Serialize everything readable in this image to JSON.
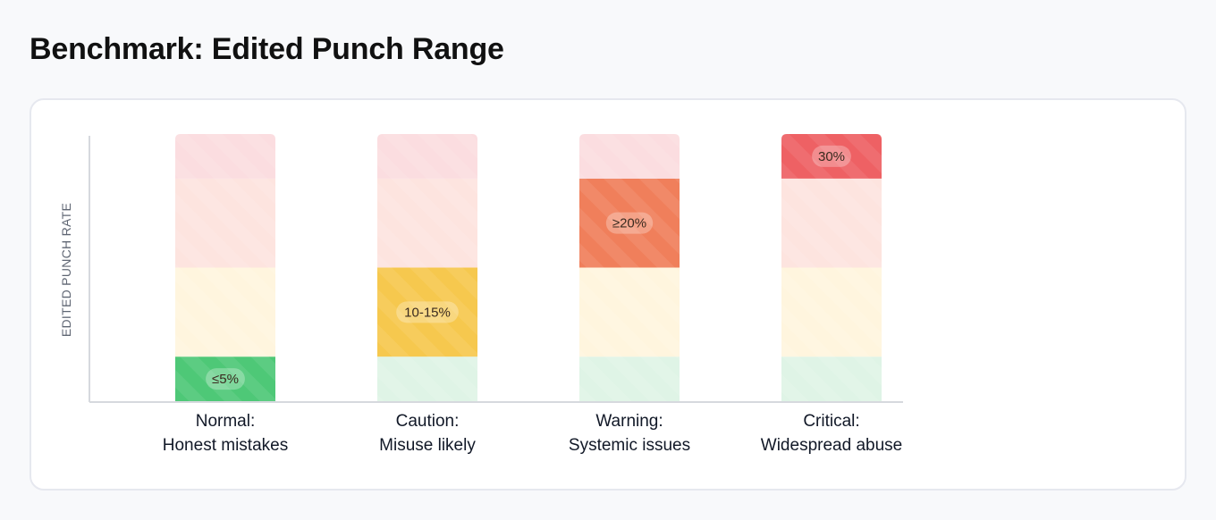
{
  "page": {
    "title": "Benchmark: Edited Punch Range"
  },
  "chart_data": {
    "type": "bar",
    "title": "",
    "ylabel": "EDITED PUNCH RATE",
    "xlabel": "",
    "grid": false,
    "legend": "none",
    "ylim": [
      0,
      30
    ],
    "bands": [
      {
        "name": "Normal",
        "from": 0,
        "to": 5,
        "color_active": "#4ec877",
        "color_tint": "#dff4e6"
      },
      {
        "name": "Caution",
        "from": 5,
        "to": 15,
        "color_active": "#f6c84e",
        "color_tint": "#fff5de"
      },
      {
        "name": "Warning",
        "from": 15,
        "to": 25,
        "color_active": "#f07f5b",
        "color_tint": "#fde4df"
      },
      {
        "name": "Critical",
        "from": 25,
        "to": 30,
        "color_active": "#ee6164",
        "color_tint": "#fbdde0"
      }
    ],
    "categories": [
      {
        "line1": "Normal:",
        "line2": "Honest mistakes",
        "value_label": "≤5%",
        "active_band": 0
      },
      {
        "line1": "Caution:",
        "line2": "Misuse likely",
        "value_label": "10-15%",
        "active_band": 1
      },
      {
        "line1": "Warning:",
        "line2": "Systemic issues",
        "value_label": "≥20%",
        "active_band": 2
      },
      {
        "line1": "Critical:",
        "line2": "Widespread abuse",
        "value_label": "30%",
        "active_band": 3
      }
    ]
  }
}
